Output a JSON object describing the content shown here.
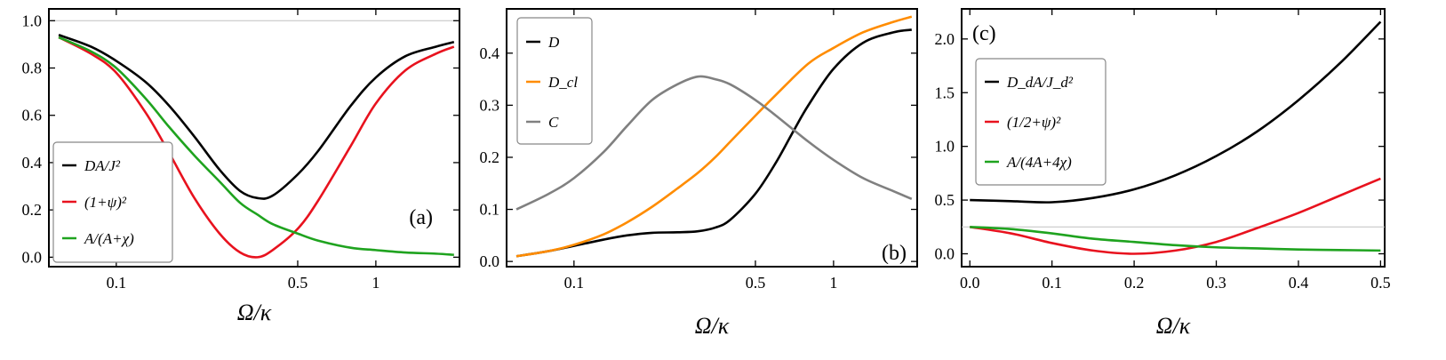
{
  "chart_data": [
    {
      "type": "line",
      "panel_label": "(a)",
      "xlabel": "Ω/κ",
      "xscale": "log",
      "xlim": [
        0.055,
        2.1
      ],
      "ylim": [
        -0.04,
        1.05
      ],
      "xticks": [
        {
          "value": 0.1,
          "label": "0.1"
        },
        {
          "value": 0.5,
          "label": "0.5"
        },
        {
          "value": 1,
          "label": "1"
        }
      ],
      "yticks": [
        {
          "value": 0.0,
          "label": "0.0"
        },
        {
          "value": 0.2,
          "label": "0.2"
        },
        {
          "value": 0.4,
          "label": "0.4"
        },
        {
          "value": 0.6,
          "label": "0.6"
        },
        {
          "value": 0.8,
          "label": "0.8"
        },
        {
          "value": 1.0,
          "label": "1.0"
        }
      ],
      "reference_line": 1.0,
      "legend_position": "lower-left",
      "series": [
        {
          "name": "DA/J²",
          "color": "#000000",
          "points": [
            [
              0.06,
              0.94
            ],
            [
              0.08,
              0.89
            ],
            [
              0.1,
              0.83
            ],
            [
              0.13,
              0.74
            ],
            [
              0.16,
              0.64
            ],
            [
              0.2,
              0.51
            ],
            [
              0.25,
              0.37
            ],
            [
              0.3,
              0.28
            ],
            [
              0.35,
              0.25
            ],
            [
              0.4,
              0.26
            ],
            [
              0.5,
              0.35
            ],
            [
              0.6,
              0.45
            ],
            [
              0.8,
              0.64
            ],
            [
              1.0,
              0.76
            ],
            [
              1.3,
              0.85
            ],
            [
              1.7,
              0.89
            ],
            [
              2.0,
              0.91
            ]
          ]
        },
        {
          "name": "(1+ψ)²",
          "color": "#e8121e",
          "points": [
            [
              0.06,
              0.93
            ],
            [
              0.08,
              0.86
            ],
            [
              0.1,
              0.78
            ],
            [
              0.13,
              0.61
            ],
            [
              0.16,
              0.44
            ],
            [
              0.2,
              0.25
            ],
            [
              0.25,
              0.1
            ],
            [
              0.3,
              0.02
            ],
            [
              0.35,
              0.0
            ],
            [
              0.4,
              0.03
            ],
            [
              0.5,
              0.12
            ],
            [
              0.6,
              0.24
            ],
            [
              0.8,
              0.47
            ],
            [
              1.0,
              0.65
            ],
            [
              1.3,
              0.79
            ],
            [
              1.7,
              0.86
            ],
            [
              2.0,
              0.89
            ]
          ]
        },
        {
          "name": "A/(A+χ)",
          "color": "#1fa31f",
          "points": [
            [
              0.06,
              0.93
            ],
            [
              0.08,
              0.87
            ],
            [
              0.1,
              0.8
            ],
            [
              0.13,
              0.67
            ],
            [
              0.16,
              0.55
            ],
            [
              0.2,
              0.43
            ],
            [
              0.25,
              0.32
            ],
            [
              0.3,
              0.23
            ],
            [
              0.35,
              0.18
            ],
            [
              0.4,
              0.14
            ],
            [
              0.5,
              0.1
            ],
            [
              0.6,
              0.07
            ],
            [
              0.8,
              0.04
            ],
            [
              1.0,
              0.03
            ],
            [
              1.3,
              0.02
            ],
            [
              1.7,
              0.015
            ],
            [
              2.0,
              0.01
            ]
          ]
        }
      ]
    },
    {
      "type": "line",
      "panel_label": "(b)",
      "xlabel": "Ω/κ",
      "xscale": "log",
      "xlim": [
        0.055,
        2.1
      ],
      "ylim": [
        -0.01,
        0.485
      ],
      "xticks": [
        {
          "value": 0.1,
          "label": "0.1"
        },
        {
          "value": 0.5,
          "label": "0.5"
        },
        {
          "value": 1,
          "label": "1"
        }
      ],
      "yticks": [
        {
          "value": 0.0,
          "label": "0.0"
        },
        {
          "value": 0.1,
          "label": "0.1"
        },
        {
          "value": 0.2,
          "label": "0.2"
        },
        {
          "value": 0.3,
          "label": "0.3"
        },
        {
          "value": 0.4,
          "label": "0.4"
        }
      ],
      "legend_position": "top-left",
      "series": [
        {
          "name": "D",
          "color": "#000000",
          "points": [
            [
              0.06,
              0.01
            ],
            [
              0.08,
              0.02
            ],
            [
              0.1,
              0.03
            ],
            [
              0.13,
              0.042
            ],
            [
              0.16,
              0.05
            ],
            [
              0.2,
              0.055
            ],
            [
              0.25,
              0.056
            ],
            [
              0.3,
              0.058
            ],
            [
              0.35,
              0.065
            ],
            [
              0.4,
              0.08
            ],
            [
              0.5,
              0.13
            ],
            [
              0.6,
              0.19
            ],
            [
              0.7,
              0.25
            ],
            [
              0.8,
              0.3
            ],
            [
              1.0,
              0.37
            ],
            [
              1.3,
              0.42
            ],
            [
              1.7,
              0.44
            ],
            [
              2.0,
              0.445
            ]
          ]
        },
        {
          "name": "D_cl",
          "color": "#ff8c00",
          "points": [
            [
              0.06,
              0.01
            ],
            [
              0.08,
              0.02
            ],
            [
              0.1,
              0.032
            ],
            [
              0.13,
              0.052
            ],
            [
              0.16,
              0.075
            ],
            [
              0.2,
              0.105
            ],
            [
              0.25,
              0.14
            ],
            [
              0.3,
              0.17
            ],
            [
              0.35,
              0.2
            ],
            [
              0.4,
              0.23
            ],
            [
              0.5,
              0.28
            ],
            [
              0.6,
              0.32
            ],
            [
              0.8,
              0.38
            ],
            [
              1.0,
              0.41
            ],
            [
              1.3,
              0.44
            ],
            [
              1.7,
              0.46
            ],
            [
              2.0,
              0.47
            ]
          ]
        },
        {
          "name": "C",
          "color": "#808080",
          "points": [
            [
              0.06,
              0.1
            ],
            [
              0.08,
              0.13
            ],
            [
              0.1,
              0.16
            ],
            [
              0.13,
              0.21
            ],
            [
              0.16,
              0.26
            ],
            [
              0.2,
              0.31
            ],
            [
              0.25,
              0.34
            ],
            [
              0.3,
              0.355
            ],
            [
              0.35,
              0.35
            ],
            [
              0.4,
              0.34
            ],
            [
              0.5,
              0.31
            ],
            [
              0.6,
              0.28
            ],
            [
              0.8,
              0.23
            ],
            [
              1.0,
              0.195
            ],
            [
              1.3,
              0.16
            ],
            [
              1.7,
              0.135
            ],
            [
              2.0,
              0.12
            ]
          ]
        }
      ]
    },
    {
      "type": "line",
      "panel_label": "(c)",
      "xlabel": "Ω/κ",
      "xscale": "linear",
      "xlim": [
        -0.01,
        0.505
      ],
      "ylim": [
        -0.12,
        2.28
      ],
      "xticks": [
        {
          "value": 0.0,
          "label": "0.0"
        },
        {
          "value": 0.1,
          "label": "0.1"
        },
        {
          "value": 0.2,
          "label": "0.2"
        },
        {
          "value": 0.3,
          "label": "0.3"
        },
        {
          "value": 0.4,
          "label": "0.4"
        },
        {
          "value": 0.5,
          "label": "0.5"
        }
      ],
      "yticks": [
        {
          "value": 0.0,
          "label": "0.0"
        },
        {
          "value": 0.5,
          "label": "0.5"
        },
        {
          "value": 1.0,
          "label": "1.0"
        },
        {
          "value": 1.5,
          "label": "1.5"
        },
        {
          "value": 2.0,
          "label": "2.0"
        }
      ],
      "reference_line": 0.25,
      "legend_position": "upper-left",
      "series": [
        {
          "name": "D_dA/J_d²",
          "color": "#000000",
          "points": [
            [
              0.0,
              0.5
            ],
            [
              0.05,
              0.49
            ],
            [
              0.1,
              0.48
            ],
            [
              0.15,
              0.52
            ],
            [
              0.2,
              0.6
            ],
            [
              0.25,
              0.73
            ],
            [
              0.3,
              0.91
            ],
            [
              0.35,
              1.14
            ],
            [
              0.4,
              1.43
            ],
            [
              0.45,
              1.77
            ],
            [
              0.5,
              2.16
            ]
          ]
        },
        {
          "name": "(1/2+ψ)²",
          "color": "#e8121e",
          "points": [
            [
              0.0,
              0.25
            ],
            [
              0.05,
              0.19
            ],
            [
              0.1,
              0.1
            ],
            [
              0.15,
              0.03
            ],
            [
              0.2,
              0.0
            ],
            [
              0.25,
              0.03
            ],
            [
              0.3,
              0.11
            ],
            [
              0.35,
              0.24
            ],
            [
              0.4,
              0.38
            ],
            [
              0.45,
              0.54
            ],
            [
              0.5,
              0.7
            ]
          ]
        },
        {
          "name": "A/(4A+4χ)",
          "color": "#1fa31f",
          "points": [
            [
              0.0,
              0.25
            ],
            [
              0.05,
              0.23
            ],
            [
              0.1,
              0.19
            ],
            [
              0.15,
              0.14
            ],
            [
              0.2,
              0.11
            ],
            [
              0.25,
              0.08
            ],
            [
              0.3,
              0.06
            ],
            [
              0.35,
              0.05
            ],
            [
              0.4,
              0.04
            ],
            [
              0.45,
              0.035
            ],
            [
              0.5,
              0.03
            ]
          ]
        }
      ]
    }
  ]
}
